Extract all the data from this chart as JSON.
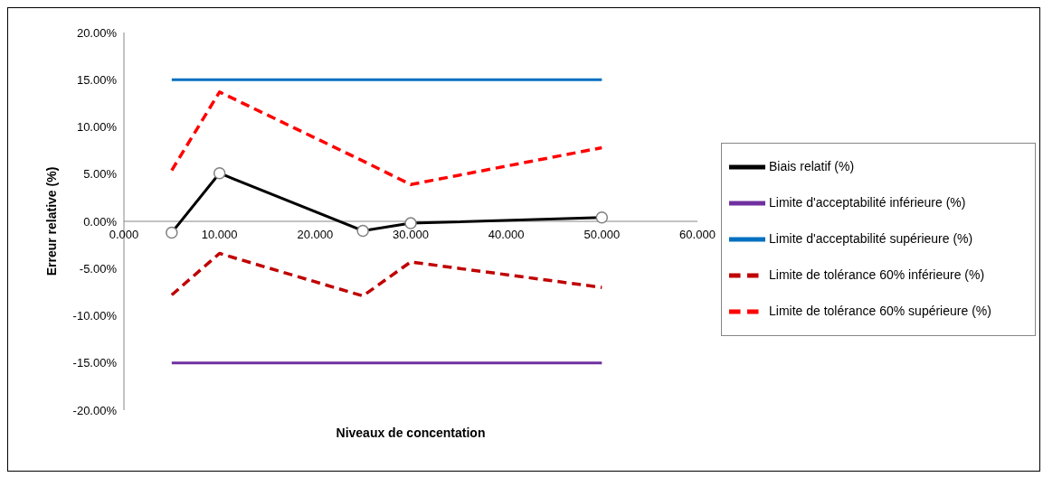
{
  "chart_data": {
    "type": "line",
    "xlabel": "Niveaux de concentation",
    "ylabel": "Erreur relative (%)",
    "xlim": [
      0,
      60
    ],
    "xticks": [
      {
        "value": 0,
        "label": "0.000"
      },
      {
        "value": 10,
        "label": "10.000"
      },
      {
        "value": 20,
        "label": "20.000"
      },
      {
        "value": 30,
        "label": "30.000"
      },
      {
        "value": 40,
        "label": "40.000"
      },
      {
        "value": 50,
        "label": "50.000"
      },
      {
        "value": 60,
        "label": "60.000"
      }
    ],
    "ylim": [
      -20,
      20
    ],
    "yticks": [
      {
        "value": -20,
        "label": "-20.00%"
      },
      {
        "value": -15,
        "label": "-15.00%"
      },
      {
        "value": -10,
        "label": "-10.00%"
      },
      {
        "value": -5,
        "label": "-5.00%"
      },
      {
        "value": 0,
        "label": "0.00%"
      },
      {
        "value": 5,
        "label": "5.00%"
      },
      {
        "value": 10,
        "label": "10.00%"
      },
      {
        "value": 15,
        "label": "15.00%"
      },
      {
        "value": 20,
        "label": "20.00%"
      }
    ],
    "grid": false,
    "legend": "right",
    "series": [
      {
        "name": "Biais relatif (%)",
        "color": "#000000",
        "marker": "circle",
        "line_style": "solid",
        "x": [
          5,
          10,
          25,
          30,
          50
        ],
        "values": [
          -1.2,
          5.1,
          -1.0,
          -0.2,
          0.4
        ]
      },
      {
        "name": "Limite d'acceptabilité inférieure (%)",
        "color": "#7030a0",
        "marker": "none",
        "line_style": "solid",
        "x": [
          5,
          10,
          25,
          30,
          50
        ],
        "values": [
          -15,
          -15,
          -15,
          -15,
          -15
        ]
      },
      {
        "name": "Limite d'acceptabilité supérieure (%)",
        "color": "#0070c0",
        "marker": "none",
        "line_style": "solid",
        "x": [
          5,
          10,
          25,
          30,
          50
        ],
        "values": [
          15,
          15,
          15,
          15,
          15
        ]
      },
      {
        "name": "Limite de tolérance 60% inférieure (%)",
        "color": "#c00000",
        "marker": "none",
        "line_style": "dashed",
        "x": [
          5,
          10,
          25,
          30,
          50
        ],
        "values": [
          -7.8,
          -3.4,
          -7.9,
          -4.3,
          -7.0
        ]
      },
      {
        "name": "Limite de tolérance 60% supérieure (%)",
        "color": "#ff0000",
        "marker": "none",
        "line_style": "dashed",
        "x": [
          5,
          10,
          25,
          30,
          50
        ],
        "values": [
          5.4,
          13.7,
          6.4,
          3.9,
          7.8
        ]
      }
    ]
  }
}
